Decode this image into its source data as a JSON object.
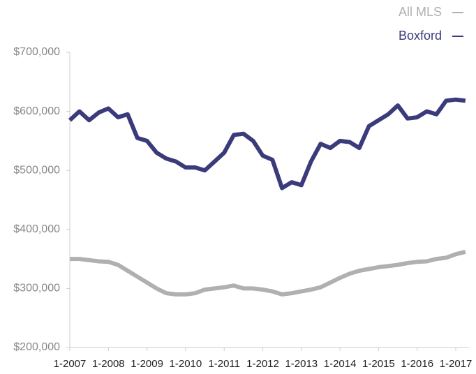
{
  "chart_data": {
    "type": "line",
    "categories": [
      "1-2007",
      null,
      null,
      null,
      "1-2008",
      null,
      null,
      null,
      "1-2009",
      null,
      null,
      null,
      "1-2010",
      null,
      null,
      null,
      "1-2011",
      null,
      null,
      null,
      "1-2012",
      null,
      null,
      null,
      "1-2013",
      null,
      null,
      null,
      "1-2014",
      null,
      null,
      null,
      "1-2015",
      null,
      null,
      null,
      "1-2016",
      null,
      null,
      null,
      "1-2017",
      null
    ],
    "series": [
      {
        "name": "All MLS",
        "color": "#b0b0b0",
        "values": [
          350000,
          350000,
          348000,
          346000,
          345000,
          340000,
          330000,
          320000,
          310000,
          300000,
          292000,
          290000,
          290000,
          292000,
          298000,
          300000,
          302000,
          305000,
          300000,
          300000,
          298000,
          295000,
          290000,
          292000,
          295000,
          298000,
          302000,
          310000,
          318000,
          325000,
          330000,
          333000,
          336000,
          338000,
          340000,
          343000,
          345000,
          346000,
          350000,
          352000,
          358000,
          362000
        ]
      },
      {
        "name": "Boxford",
        "color": "#3b3b7c",
        "values": [
          585000,
          600000,
          585000,
          598000,
          605000,
          590000,
          595000,
          555000,
          550000,
          530000,
          520000,
          515000,
          505000,
          505000,
          500000,
          515000,
          530000,
          560000,
          562000,
          550000,
          525000,
          518000,
          470000,
          480000,
          475000,
          515000,
          545000,
          538000,
          550000,
          548000,
          538000,
          575000,
          585000,
          595000,
          610000,
          588000,
          590000,
          600000,
          595000,
          618000,
          620000,
          618000
        ]
      }
    ],
    "ylim": [
      200000,
      700000
    ],
    "yticks": [
      {
        "value": 200000,
        "label": "$200,000"
      },
      {
        "value": 300000,
        "label": "$300,000"
      },
      {
        "value": 400000,
        "label": "$400,000"
      },
      {
        "value": 500000,
        "label": "$500,000"
      },
      {
        "value": 600000,
        "label": "$600,000"
      },
      {
        "value": 700000,
        "label": "$700,000"
      }
    ],
    "grid": false,
    "legend": "top-right"
  }
}
